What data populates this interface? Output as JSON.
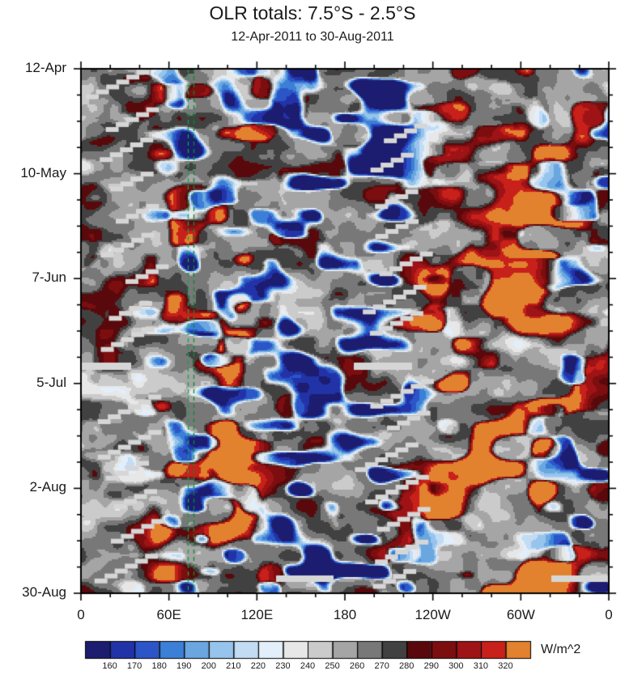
{
  "title": "OLR totals: 7.5°S - 2.5°S",
  "subtitle": "12-Apr-2011 to 30-Aug-2011",
  "chart_data": {
    "type": "heatmap",
    "title": "OLR totals: 7.5°S - 2.5°S",
    "subtitle": "12-Apr-2011 to 30-Aug-2011",
    "variable": "OLR totals",
    "latitude_band": "7.5°S - 2.5°S",
    "date_range": "12-Apr-2011 to 30-Aug-2011",
    "x_axis": {
      "ticks": [
        "0",
        "60E",
        "120E",
        "180",
        "120W",
        "60W",
        "0"
      ],
      "range_deg": [
        0,
        360
      ],
      "minor_tick_interval_deg": 20
    },
    "y_axis": {
      "ticks": [
        "12-Apr",
        "10-May",
        "7-Jun",
        "5-Jul",
        "2-Aug",
        "30-Aug"
      ],
      "major_tick_interval_days": 28,
      "minor_tick_interval_days": 7,
      "direction": "time increases downward"
    },
    "colorbar": {
      "units": "W/m^2",
      "levels": [
        160,
        170,
        180,
        190,
        200,
        210,
        220,
        230,
        240,
        250,
        260,
        270,
        280,
        290,
        300,
        310,
        320
      ],
      "colors": [
        "#1c1c70",
        "#2233a8",
        "#2c55c8",
        "#3c7fd6",
        "#6aa6e0",
        "#97c4ec",
        "#c2dcf4",
        "#e2eefa",
        "#e7e7e7",
        "#cbcbcb",
        "#a5a5a5",
        "#787878",
        "#414141",
        "#59090b",
        "#7c0e10",
        "#9e1315",
        "#c8201a",
        "#e2812e"
      ]
    },
    "annotations": [
      "two green dashed vertical reference lines near 75E",
      "light gray diagonal staircase streaks marking data gaps",
      "low OLR (blue) convective patches, high OLR (dark red) dry patches over gray background"
    ]
  }
}
